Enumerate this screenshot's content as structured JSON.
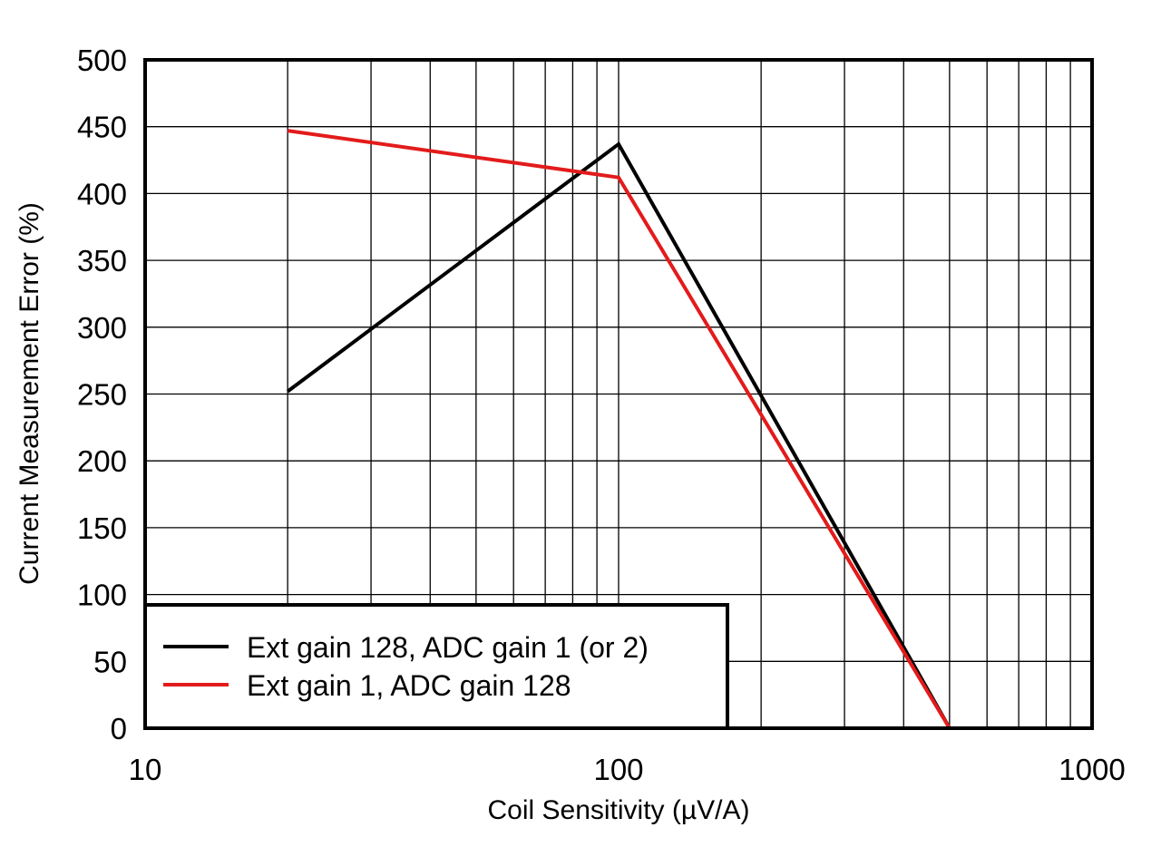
{
  "chart_data": {
    "type": "line",
    "title": "",
    "xlabel": "Coil Sensitivity (µV/A)",
    "ylabel": "Current Measurement Error (%)",
    "xscale": "log",
    "xlim": [
      10,
      1000
    ],
    "ylim": [
      0,
      500
    ],
    "x_ticks": [
      10,
      100,
      1000
    ],
    "x_tick_labels": [
      "10",
      "100",
      "1000"
    ],
    "y_ticks": [
      0,
      50,
      100,
      150,
      200,
      250,
      300,
      350,
      400,
      450,
      500
    ],
    "y_tick_labels": [
      "0",
      "50",
      "100",
      "150",
      "200",
      "250",
      "300",
      "350",
      "400",
      "450",
      "500"
    ],
    "grid": true,
    "legend_position": "bottom-left",
    "series": [
      {
        "name": "Ext gain 128, ADC gain 1 (or 2)",
        "color": "#000000",
        "points": [
          [
            20,
            252
          ],
          [
            100,
            437
          ],
          [
            500,
            0
          ]
        ]
      },
      {
        "name": "Ext gain 1, ADC gain 128",
        "color": "#e31b1b",
        "points": [
          [
            20,
            447
          ],
          [
            100,
            412
          ],
          [
            500,
            0
          ]
        ]
      }
    ]
  }
}
